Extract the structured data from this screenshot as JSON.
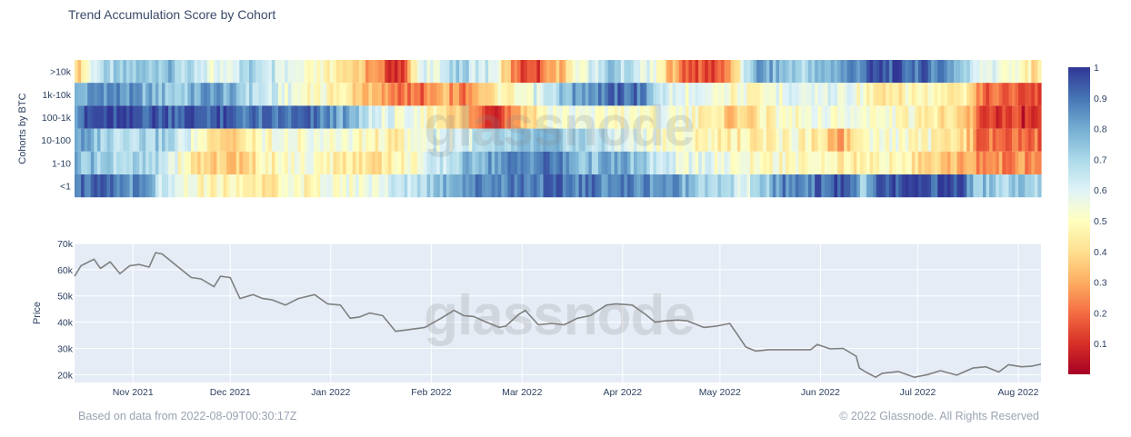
{
  "title": "Trend Accumulation Score by Cohort",
  "footer": {
    "left": "Based on data from 2022-08-09T00:30:17Z",
    "right": "© 2022 Glassnode. All Rights Reserved"
  },
  "watermark": "glassnode",
  "colors": {
    "plot_bg": "#e5ecf6",
    "price_line": "#7f7f7f",
    "colorscale": [
      "#a50026",
      "#d73027",
      "#f46d43",
      "#fdae61",
      "#fee090",
      "#ffffbf",
      "#e0f3f8",
      "#abd9e9",
      "#74add1",
      "#4575b4",
      "#313695"
    ]
  },
  "chart_data": [
    {
      "type": "heatmap",
      "ylabel": "Cohorts by BTC",
      "rows": [
        ">10k",
        "1k-10k",
        "100-1k",
        "10-100",
        "1-10",
        "<1"
      ],
      "x_range": [
        "2021-10-14",
        "2022-08-08"
      ],
      "zlim": [
        0,
        1
      ],
      "colorbar_ticks": [
        0.1,
        0.2,
        0.3,
        0.4,
        0.5,
        0.6,
        0.7,
        0.8,
        0.9,
        1
      ],
      "colorbar_labels": [
        "0.1",
        "0.2",
        "0.3",
        "0.4",
        "0.5",
        "0.6",
        "0.7",
        "0.8",
        "0.9",
        "1"
      ],
      "segments": {
        ">10k": [
          [
            "2021-10-14",
            0.35
          ],
          [
            "2021-10-20",
            0.65
          ],
          [
            "2021-11-10",
            0.78
          ],
          [
            "2021-11-25",
            0.55
          ],
          [
            "2021-12-08",
            0.72
          ],
          [
            "2021-12-20",
            0.6
          ],
          [
            "2022-01-05",
            0.45
          ],
          [
            "2022-01-14",
            0.25
          ],
          [
            "2022-01-22",
            0.08
          ],
          [
            "2022-01-28",
            0.55
          ],
          [
            "2022-02-10",
            0.7
          ],
          [
            "2022-02-20",
            0.6
          ],
          [
            "2022-02-28",
            0.15
          ],
          [
            "2022-03-05",
            0.12
          ],
          [
            "2022-03-20",
            0.55
          ],
          [
            "2022-03-28",
            0.75
          ],
          [
            "2022-04-10",
            0.55
          ],
          [
            "2022-04-20",
            0.2
          ],
          [
            "2022-04-28",
            0.12
          ],
          [
            "2022-05-05",
            0.3
          ],
          [
            "2022-05-12",
            0.82
          ],
          [
            "2022-05-28",
            0.7
          ],
          [
            "2022-06-10",
            0.85
          ],
          [
            "2022-06-20",
            0.95
          ],
          [
            "2022-07-10",
            0.88
          ],
          [
            "2022-07-18",
            0.65
          ],
          [
            "2022-07-28",
            0.55
          ],
          [
            "2022-08-08",
            0.4
          ]
        ],
        "1k-10k": [
          [
            "2021-10-14",
            0.75
          ],
          [
            "2021-10-22",
            0.88
          ],
          [
            "2021-11-15",
            0.72
          ],
          [
            "2021-11-25",
            0.85
          ],
          [
            "2021-12-10",
            0.65
          ],
          [
            "2021-12-20",
            0.55
          ],
          [
            "2022-01-05",
            0.45
          ],
          [
            "2022-01-14",
            0.3
          ],
          [
            "2022-01-28",
            0.18
          ],
          [
            "2022-02-05",
            0.3
          ],
          [
            "2022-02-12",
            0.2
          ],
          [
            "2022-02-20",
            0.45
          ],
          [
            "2022-03-05",
            0.6
          ],
          [
            "2022-03-20",
            0.85
          ],
          [
            "2022-04-05",
            0.92
          ],
          [
            "2022-04-15",
            0.6
          ],
          [
            "2022-05-05",
            0.5
          ],
          [
            "2022-05-20",
            0.55
          ],
          [
            "2022-06-05",
            0.6
          ],
          [
            "2022-06-20",
            0.45
          ],
          [
            "2022-07-05",
            0.5
          ],
          [
            "2022-07-18",
            0.45
          ],
          [
            "2022-07-20",
            0.2
          ],
          [
            "2022-08-08",
            0.15
          ]
        ],
        "100-1k": [
          [
            "2021-10-14",
            0.88
          ],
          [
            "2021-10-20",
            0.96
          ],
          [
            "2021-11-25",
            0.94
          ],
          [
            "2021-12-10",
            0.88
          ],
          [
            "2021-12-25",
            0.9
          ],
          [
            "2022-01-05",
            0.8
          ],
          [
            "2022-01-12",
            0.65
          ],
          [
            "2022-01-22",
            0.55
          ],
          [
            "2022-02-05",
            0.45
          ],
          [
            "2022-02-12",
            0.3
          ],
          [
            "2022-02-20",
            0.1
          ],
          [
            "2022-03-01",
            0.35
          ],
          [
            "2022-03-10",
            0.55
          ],
          [
            "2022-04-05",
            0.5
          ],
          [
            "2022-04-20",
            0.55
          ],
          [
            "2022-05-05",
            0.35
          ],
          [
            "2022-05-20",
            0.5
          ],
          [
            "2022-06-10",
            0.55
          ],
          [
            "2022-07-01",
            0.5
          ],
          [
            "2022-07-18",
            0.3
          ],
          [
            "2022-07-20",
            0.15
          ],
          [
            "2022-08-08",
            0.08
          ]
        ],
        "10-100": [
          [
            "2021-10-14",
            0.82
          ],
          [
            "2021-10-25",
            0.7
          ],
          [
            "2021-11-10",
            0.72
          ],
          [
            "2021-11-20",
            0.55
          ],
          [
            "2021-12-01",
            0.35
          ],
          [
            "2021-12-10",
            0.5
          ],
          [
            "2022-01-01",
            0.55
          ],
          [
            "2022-01-20",
            0.45
          ],
          [
            "2022-02-01",
            0.6
          ],
          [
            "2022-02-20",
            0.65
          ],
          [
            "2022-03-05",
            0.75
          ],
          [
            "2022-03-20",
            0.7
          ],
          [
            "2022-04-01",
            0.6
          ],
          [
            "2022-04-20",
            0.5
          ],
          [
            "2022-05-10",
            0.45
          ],
          [
            "2022-05-25",
            0.5
          ],
          [
            "2022-06-08",
            0.3
          ],
          [
            "2022-06-15",
            0.55
          ],
          [
            "2022-07-05",
            0.5
          ],
          [
            "2022-07-18",
            0.35
          ],
          [
            "2022-07-20",
            0.2
          ],
          [
            "2022-08-08",
            0.2
          ]
        ],
        "1-10": [
          [
            "2021-10-14",
            0.78
          ],
          [
            "2021-10-25",
            0.72
          ],
          [
            "2021-11-10",
            0.65
          ],
          [
            "2021-11-20",
            0.4
          ],
          [
            "2021-12-01",
            0.35
          ],
          [
            "2021-12-10",
            0.45
          ],
          [
            "2021-12-25",
            0.55
          ],
          [
            "2022-01-10",
            0.4
          ],
          [
            "2022-01-25",
            0.5
          ],
          [
            "2022-02-05",
            0.65
          ],
          [
            "2022-02-15",
            0.8
          ],
          [
            "2022-02-25",
            0.85
          ],
          [
            "2022-03-10",
            0.9
          ],
          [
            "2022-03-20",
            0.75
          ],
          [
            "2022-04-01",
            0.8
          ],
          [
            "2022-04-15",
            0.6
          ],
          [
            "2022-05-01",
            0.55
          ],
          [
            "2022-05-20",
            0.5
          ],
          [
            "2022-06-10",
            0.45
          ],
          [
            "2022-06-20",
            0.5
          ],
          [
            "2022-07-18",
            0.3
          ],
          [
            "2022-07-20",
            0.25
          ],
          [
            "2022-08-08",
            0.25
          ]
        ],
        "<1": [
          [
            "2021-10-14",
            0.92
          ],
          [
            "2021-10-25",
            0.88
          ],
          [
            "2021-11-05",
            0.82
          ],
          [
            "2021-11-10",
            0.6
          ],
          [
            "2021-11-20",
            0.5
          ],
          [
            "2021-12-10",
            0.45
          ],
          [
            "2022-01-10",
            0.55
          ],
          [
            "2022-01-25",
            0.65
          ],
          [
            "2022-02-10",
            0.85
          ],
          [
            "2022-03-01",
            0.9
          ],
          [
            "2022-03-25",
            0.88
          ],
          [
            "2022-04-15",
            0.85
          ],
          [
            "2022-05-10",
            0.6
          ],
          [
            "2022-05-20",
            0.85
          ],
          [
            "2022-06-10",
            0.95
          ],
          [
            "2022-06-15",
            0.7
          ],
          [
            "2022-06-20",
            0.94
          ],
          [
            "2022-07-15",
            0.96
          ],
          [
            "2022-07-18",
            0.8
          ],
          [
            "2022-07-20",
            0.75
          ],
          [
            "2022-08-08",
            0.7
          ]
        ]
      }
    },
    {
      "type": "line",
      "ylabel": "Price",
      "ylim": [
        17000,
        70000
      ],
      "yticks": [
        20000,
        30000,
        40000,
        50000,
        60000,
        70000
      ],
      "ytick_labels": [
        "20k",
        "30k",
        "40k",
        "50k",
        "60k",
        "70k"
      ],
      "xticks": [
        "2021-11-01",
        "2021-12-01",
        "2022-01-01",
        "2022-02-01",
        "2022-03-01",
        "2022-04-01",
        "2022-05-01",
        "2022-06-01",
        "2022-07-01",
        "2022-08-01"
      ],
      "xtick_labels": [
        "Nov 2021",
        "Dec 2021",
        "Jan 2022",
        "Feb 2022",
        "Mar 2022",
        "Apr 2022",
        "May 2022",
        "Jun 2022",
        "Jul 2022",
        "Aug 2022"
      ],
      "x_range": [
        "2021-10-14",
        "2022-08-08"
      ],
      "series": [
        {
          "points": [
            [
              "2021-10-14",
              57500
            ],
            [
              "2021-10-16",
              61500
            ],
            [
              "2021-10-20",
              64000
            ],
            [
              "2021-10-22",
              60500
            ],
            [
              "2021-10-25",
              63000
            ],
            [
              "2021-10-28",
              58500
            ],
            [
              "2021-10-31",
              61500
            ],
            [
              "2021-11-03",
              62000
            ],
            [
              "2021-11-06",
              61000
            ],
            [
              "2021-11-08",
              66500
            ],
            [
              "2021-11-10",
              66000
            ],
            [
              "2021-11-12",
              64000
            ],
            [
              "2021-11-16",
              60000
            ],
            [
              "2021-11-19",
              57000
            ],
            [
              "2021-11-22",
              56500
            ],
            [
              "2021-11-26",
              53500
            ],
            [
              "2021-11-28",
              57500
            ],
            [
              "2021-12-01",
              57000
            ],
            [
              "2021-12-04",
              49000
            ],
            [
              "2021-12-08",
              50500
            ],
            [
              "2021-12-11",
              49000
            ],
            [
              "2021-12-14",
              48500
            ],
            [
              "2021-12-18",
              46500
            ],
            [
              "2021-12-22",
              49000
            ],
            [
              "2021-12-27",
              50500
            ],
            [
              "2021-12-31",
              47000
            ],
            [
              "2022-01-04",
              46500
            ],
            [
              "2022-01-07",
              41500
            ],
            [
              "2022-01-10",
              42000
            ],
            [
              "2022-01-13",
              43500
            ],
            [
              "2022-01-17",
              42500
            ],
            [
              "2022-01-21",
              36500
            ],
            [
              "2022-01-24",
              37000
            ],
            [
              "2022-01-30",
              38000
            ],
            [
              "2022-02-04",
              41500
            ],
            [
              "2022-02-08",
              44500
            ],
            [
              "2022-02-11",
              42500
            ],
            [
              "2022-02-14",
              42200
            ],
            [
              "2022-02-18",
              40000
            ],
            [
              "2022-02-22",
              38000
            ],
            [
              "2022-02-24",
              38500
            ],
            [
              "2022-02-28",
              43000
            ],
            [
              "2022-03-02",
              44500
            ],
            [
              "2022-03-06",
              39000
            ],
            [
              "2022-03-10",
              39500
            ],
            [
              "2022-03-14",
              39000
            ],
            [
              "2022-03-18",
              41500
            ],
            [
              "2022-03-22",
              42500
            ],
            [
              "2022-03-27",
              46500
            ],
            [
              "2022-03-30",
              47000
            ],
            [
              "2022-04-04",
              46500
            ],
            [
              "2022-04-08",
              43000
            ],
            [
              "2022-04-11",
              40000
            ],
            [
              "2022-04-14",
              40500
            ],
            [
              "2022-04-18",
              40800
            ],
            [
              "2022-04-21",
              40500
            ],
            [
              "2022-04-26",
              38000
            ],
            [
              "2022-04-30",
              38500
            ],
            [
              "2022-05-04",
              39500
            ],
            [
              "2022-05-06",
              36000
            ],
            [
              "2022-05-09",
              30500
            ],
            [
              "2022-05-12",
              29000
            ],
            [
              "2022-05-16",
              29500
            ],
            [
              "2022-05-21",
              29500
            ],
            [
              "2022-05-25",
              29500
            ],
            [
              "2022-05-29",
              29500
            ],
            [
              "2022-05-31",
              31500
            ],
            [
              "2022-06-04",
              29800
            ],
            [
              "2022-06-08",
              30000
            ],
            [
              "2022-06-12",
              27000
            ],
            [
              "2022-06-13",
              22500
            ],
            [
              "2022-06-15",
              21000
            ],
            [
              "2022-06-18",
              19000
            ],
            [
              "2022-06-20",
              20500
            ],
            [
              "2022-06-25",
              21200
            ],
            [
              "2022-06-30",
              19000
            ],
            [
              "2022-07-04",
              20000
            ],
            [
              "2022-07-08",
              21500
            ],
            [
              "2022-07-13",
              19800
            ],
            [
              "2022-07-18",
              22500
            ],
            [
              "2022-07-22",
              23000
            ],
            [
              "2022-07-26",
              21000
            ],
            [
              "2022-07-29",
              23800
            ],
            [
              "2022-08-02",
              23000
            ],
            [
              "2022-08-05",
              23200
            ],
            [
              "2022-08-08",
              24000
            ]
          ]
        }
      ]
    }
  ]
}
